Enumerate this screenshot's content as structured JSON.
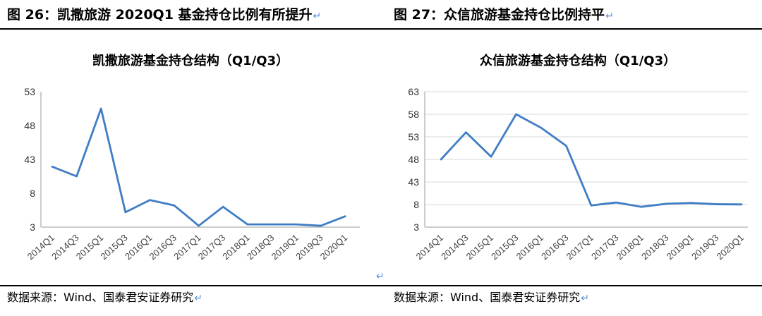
{
  "left": {
    "heading": "图 26：凯撒旅游 2020Q1 基金持仓比例有所提升",
    "source": "数据来源：Wind、国泰君安证券研究"
  },
  "right": {
    "heading": "图 27：众信旅游基金持仓比例持平",
    "source": "数据来源：Wind、国泰君安证券研究"
  },
  "return_glyph": "↵",
  "chart_data": [
    {
      "type": "line",
      "title": "凯撒旅游基金持仓结构（Q1/Q3）",
      "xlabel": "",
      "ylabel": "",
      "ylim": [
        3,
        53
      ],
      "yticks": [
        3,
        8,
        43,
        48,
        53
      ],
      "grid": false,
      "categories": [
        "2014Q1",
        "2014Q3",
        "2015Q1",
        "2015Q3",
        "2016Q1",
        "2016Q3",
        "2017Q1",
        "2017Q3",
        "2018Q1",
        "2018Q3",
        "2019Q1",
        "2019Q3",
        "2020Q1"
      ],
      "series": [
        {
          "values": [
            35.5,
            25.5,
            50.5,
            5.2,
            7.0,
            6.2,
            3.2,
            6.0,
            3.4,
            3.4,
            3.4,
            3.2,
            4.6
          ]
        }
      ],
      "color": "#3f7dc4"
    },
    {
      "type": "line",
      "title": "众信旅游基金持仓结构（Q1/Q3）",
      "xlabel": "",
      "ylabel": "",
      "ylim": [
        3,
        63
      ],
      "yticks": [
        3,
        8,
        43,
        48,
        53,
        58,
        63
      ],
      "grid": true,
      "categories": [
        "2014Q1",
        "2014Q3",
        "2015Q1",
        "2015Q3",
        "2016Q1",
        "2016Q3",
        "2017Q1",
        "2017Q3",
        "2018Q1",
        "2018Q3",
        "2019Q1",
        "2019Q3",
        "2020Q1"
      ],
      "series": [
        {
          "values": [
            48.0,
            54.0,
            48.6,
            58.0,
            55.0,
            51.0,
            7.8,
            11.2,
            7.5,
            9.2,
            10.5,
            8.5,
            8.2
          ]
        }
      ],
      "color": "#3f7dc4"
    }
  ]
}
